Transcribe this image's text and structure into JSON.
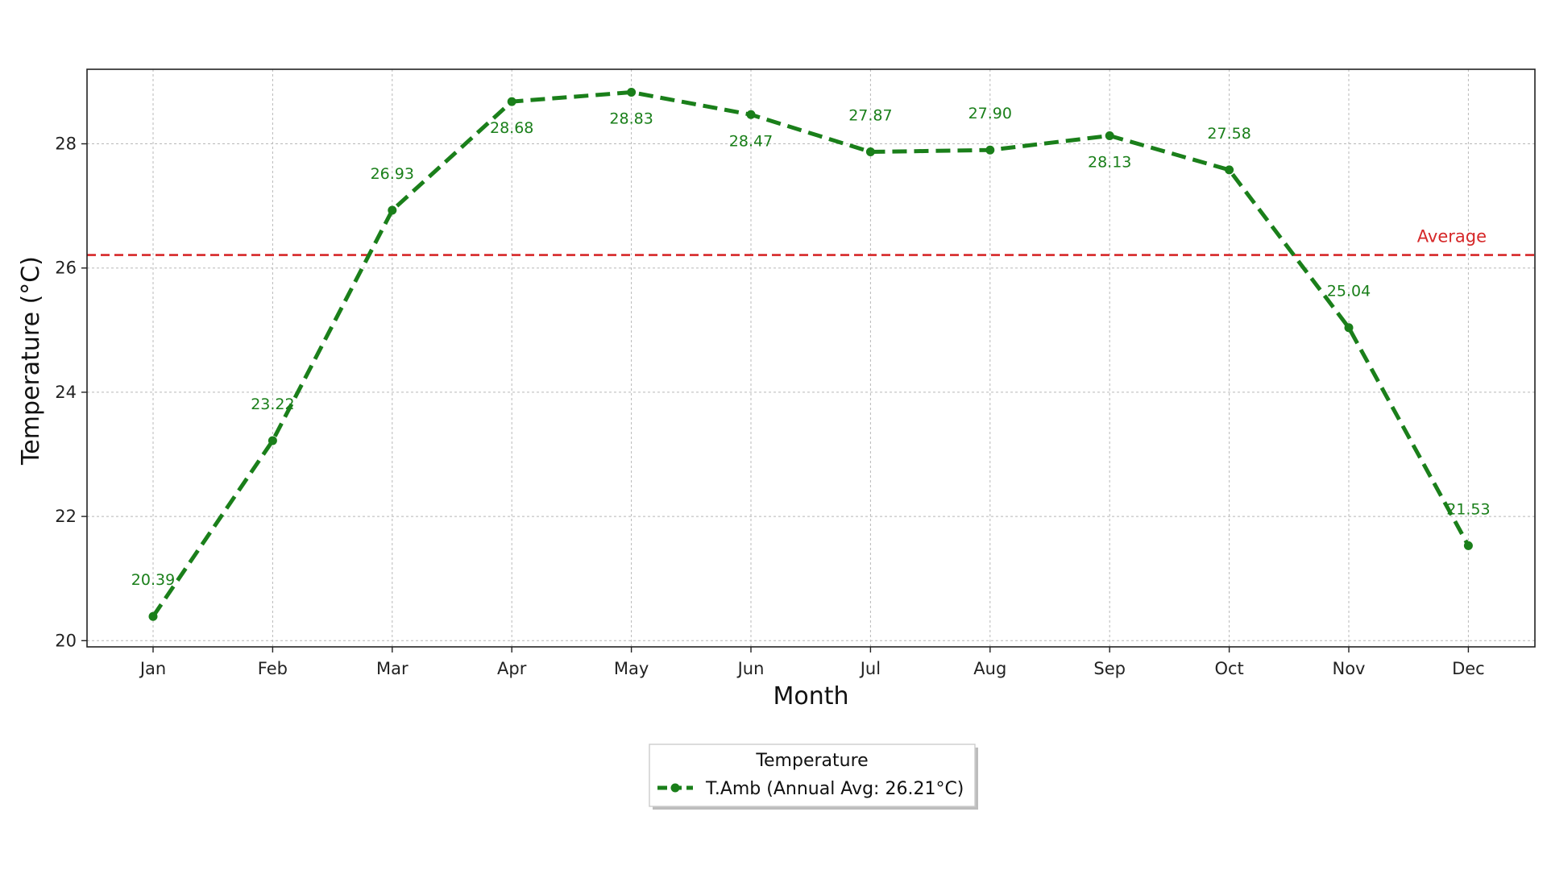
{
  "chart_data": {
    "type": "line",
    "categories": [
      "Jan",
      "Feb",
      "Mar",
      "Apr",
      "May",
      "Jun",
      "Jul",
      "Aug",
      "Sep",
      "Oct",
      "Nov",
      "Dec"
    ],
    "series": [
      {
        "name": "T.Amb (Annual Avg: 26.21°C)",
        "values": [
          20.39,
          23.22,
          26.93,
          28.68,
          28.83,
          28.47,
          27.87,
          27.9,
          28.13,
          27.58,
          25.04,
          21.53
        ],
        "labels": [
          "20.39",
          "23.22",
          "26.93",
          "28.68",
          "28.83",
          "28.47",
          "27.87",
          "27.90",
          "28.13",
          "27.58",
          "25.04",
          "21.53"
        ],
        "color": "#1a7f1a",
        "line_style": "dashed",
        "marker": "circle"
      }
    ],
    "reference_line": {
      "label": "Average",
      "value": 26.21,
      "color": "#d62728",
      "line_style": "dashed"
    },
    "xlabel": "Month",
    "ylabel": "Temperature (°C)",
    "ylim": [
      19.9,
      29.2
    ],
    "yticks": [
      20,
      22,
      24,
      26,
      28
    ],
    "ytick_labels": [
      "20",
      "22",
      "24",
      "26",
      "28"
    ],
    "grid": true,
    "legend": {
      "title": "Temperature",
      "placement": "bottom-center"
    }
  }
}
